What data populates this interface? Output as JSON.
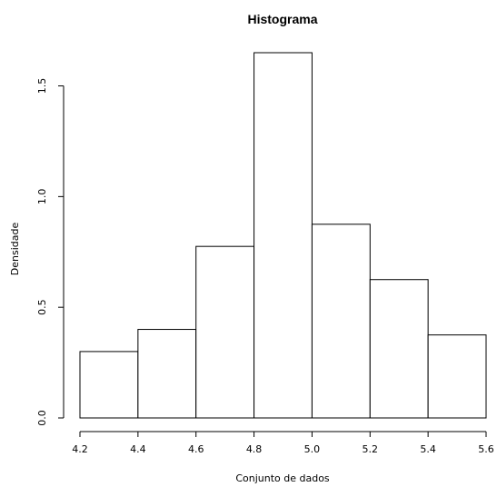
{
  "chart_data": {
    "type": "bar",
    "title": "Histograma",
    "xlabel": "Conjunto de dados",
    "ylabel": "Densidade",
    "bins": [
      {
        "from": 4.2,
        "to": 4.4,
        "density": 0.3
      },
      {
        "from": 4.4,
        "to": 4.6,
        "density": 0.4
      },
      {
        "from": 4.6,
        "to": 4.8,
        "density": 0.775
      },
      {
        "from": 4.8,
        "to": 5.0,
        "density": 1.65
      },
      {
        "from": 5.0,
        "to": 5.2,
        "density": 0.875
      },
      {
        "from": 5.2,
        "to": 5.4,
        "density": 0.625
      },
      {
        "from": 5.4,
        "to": 5.6,
        "density": 0.375
      }
    ],
    "xlim": [
      4.2,
      5.6
    ],
    "ylim": [
      0,
      1.65
    ],
    "xticks": [
      "4.2",
      "4.4",
      "4.6",
      "4.8",
      "5.0",
      "5.2",
      "5.4",
      "5.6"
    ],
    "yticks": [
      "0.0",
      "0.5",
      "1.0",
      "1.5"
    ],
    "bar_fill": "#ffffff",
    "bar_stroke": "#000000",
    "grid": false,
    "legend": "none"
  }
}
